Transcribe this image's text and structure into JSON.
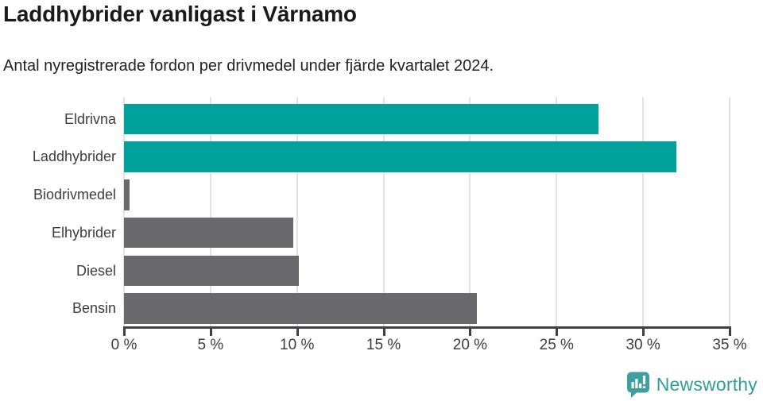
{
  "title": "Laddhybrider vanligast i Värnamo",
  "subtitle": "Antal nyregistrerade fordon per drivmedel under fjärde kvartalet 2024.",
  "chart_data": {
    "type": "bar",
    "orientation": "horizontal",
    "categories": [
      "Eldrivna",
      "Laddhybrider",
      "Biodrivmedel",
      "Elhybrider",
      "Diesel",
      "Bensin"
    ],
    "values": [
      27.4,
      31.9,
      0.3,
      9.8,
      10.1,
      20.4
    ],
    "unit": "%",
    "xlim": [
      0,
      35
    ],
    "x_ticks": [
      0,
      5,
      10,
      15,
      20,
      25,
      30,
      35
    ],
    "x_tick_labels": [
      "0 %",
      "5 %",
      "10 %",
      "15 %",
      "20 %",
      "25 %",
      "30 %",
      "35 %"
    ],
    "bar_colors": [
      "#00a29b",
      "#00a29b",
      "#6a6a6e",
      "#6a6a6e",
      "#6a6a6e",
      "#6a6a6e"
    ],
    "highlight_color": "#00a29b",
    "default_color": "#6a6a6e",
    "grid": true,
    "legend": "none"
  },
  "branding": {
    "name": "Newsworthy",
    "logo_icon": "newsworthy-logo",
    "text_color": "#2f9d9d",
    "logo_color": "#3f9fa0"
  }
}
